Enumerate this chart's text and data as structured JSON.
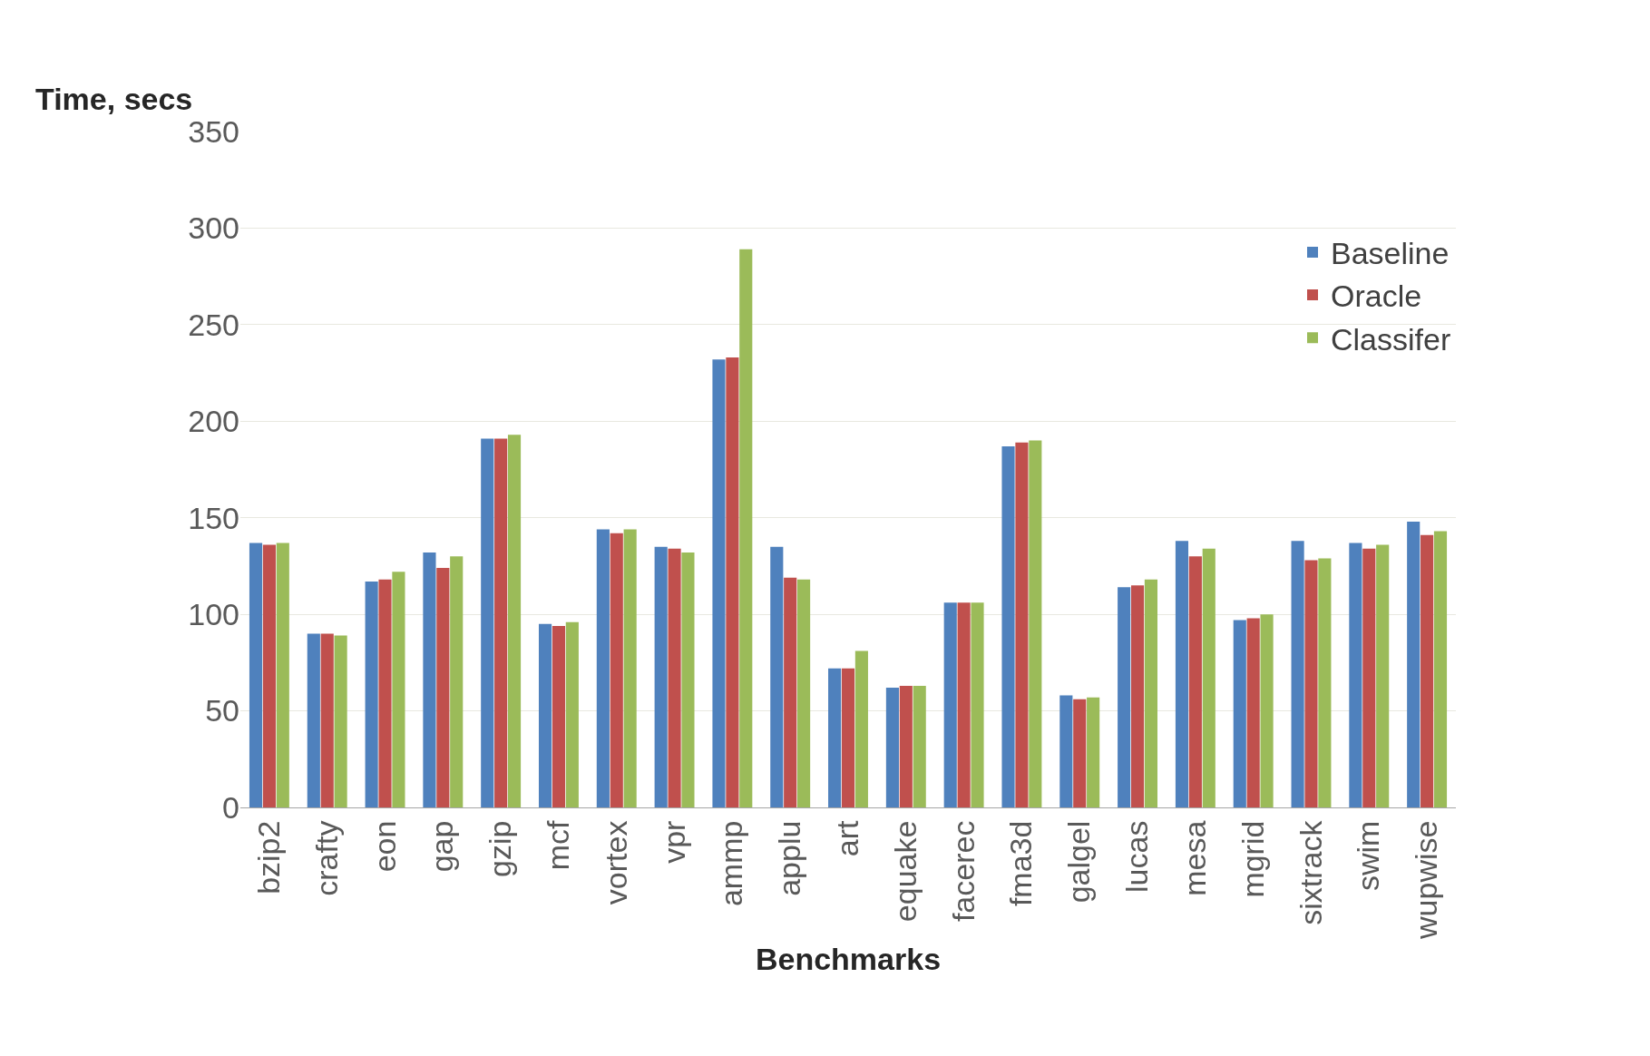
{
  "chart_data": {
    "type": "bar",
    "ylabel": "Time, secs",
    "xlabel": "Benchmarks",
    "categories": [
      "bzip2",
      "crafty",
      "eon",
      "gap",
      "gzip",
      "mcf",
      "vortex",
      "vpr",
      "ammp",
      "applu",
      "art",
      "equake",
      "facerec",
      "fma3d",
      "galgel",
      "lucas",
      "mesa",
      "mgrid",
      "sixtrack",
      "swim",
      "wupwise"
    ],
    "series": [
      {
        "name": "Baseline",
        "color": "#4f81bd",
        "values": [
          137,
          90,
          117,
          132,
          191,
          95,
          144,
          135,
          232,
          135,
          72,
          62,
          106,
          187,
          58,
          114,
          138,
          97,
          138,
          137,
          148
        ]
      },
      {
        "name": "Oracle",
        "color": "#c0504d",
        "values": [
          136,
          90,
          118,
          124,
          191,
          94,
          142,
          134,
          233,
          119,
          72,
          63,
          106,
          189,
          56,
          115,
          130,
          98,
          128,
          134,
          141
        ]
      },
      {
        "name": "Classifer",
        "color": "#9bbb59",
        "values": [
          137,
          89,
          122,
          130,
          193,
          96,
          144,
          132,
          289,
          118,
          81,
          63,
          106,
          190,
          57,
          118,
          134,
          100,
          129,
          136,
          143
        ]
      }
    ],
    "ylim": [
      0,
      350
    ],
    "yticks": [
      0,
      50,
      100,
      150,
      200,
      250,
      300,
      350
    ],
    "grid": "y",
    "legend": "top right"
  }
}
